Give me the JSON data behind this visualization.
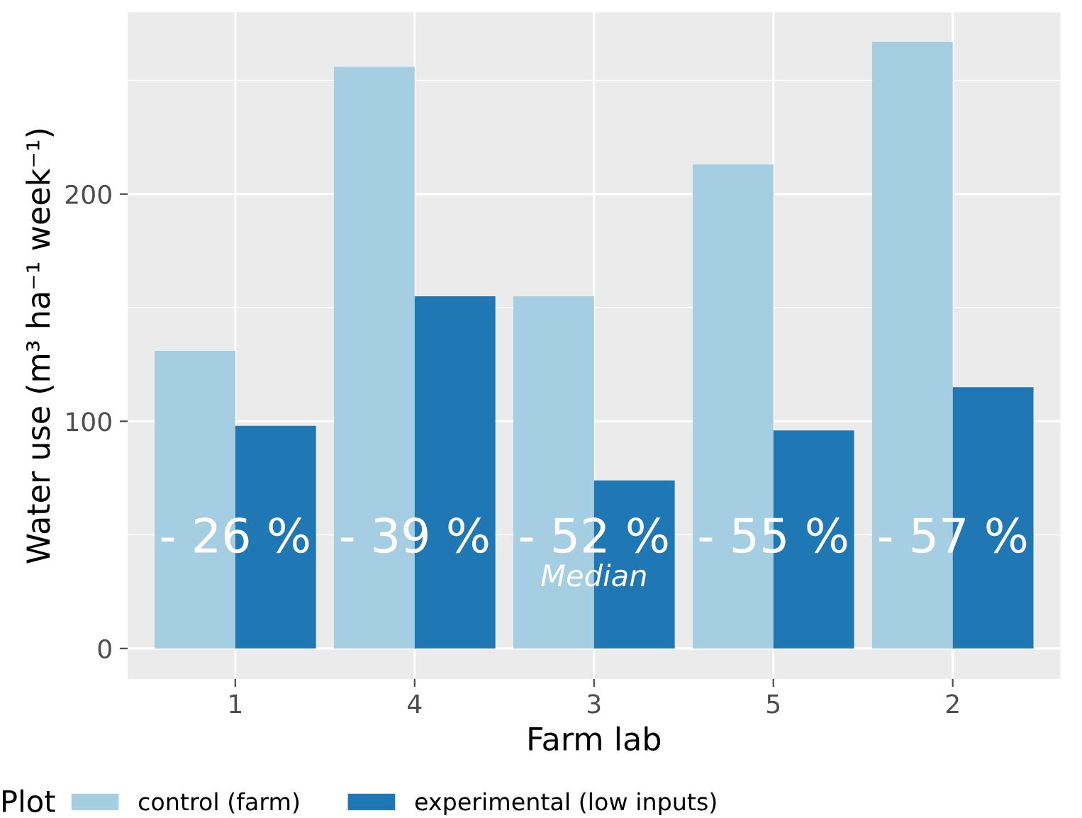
{
  "chart_data": {
    "type": "bar",
    "xlabel": "Farm lab",
    "ylabel": "Water use (m³ ha⁻¹ week⁻¹)",
    "legend_title": "Plot",
    "categories": [
      "1",
      "4",
      "3",
      "5",
      "2"
    ],
    "series": [
      {
        "name": "control (farm)",
        "color": "#a6cee3",
        "values": [
          131,
          256,
          155,
          213,
          267
        ]
      },
      {
        "name": "experimental (low inputs)",
        "color": "#1f78b4",
        "values": [
          98,
          155,
          74,
          96,
          115
        ]
      }
    ],
    "ylim": [
      -13.4,
      280
    ],
    "yticks": [
      0,
      100,
      200
    ],
    "grid": true,
    "legend": "bottom",
    "annotations": [
      {
        "text": "- 26 %",
        "x": "1",
        "y": 48
      },
      {
        "text": "- 39 %",
        "x": "4",
        "y": 48
      },
      {
        "text": "- 52 %",
        "x": "3",
        "y": 48
      },
      {
        "text": "- 55 %",
        "x": "5",
        "y": 48
      },
      {
        "text": "- 57 %",
        "x": "2",
        "y": 48
      },
      {
        "text": "Median",
        "x": "3",
        "y": 31
      }
    ]
  }
}
